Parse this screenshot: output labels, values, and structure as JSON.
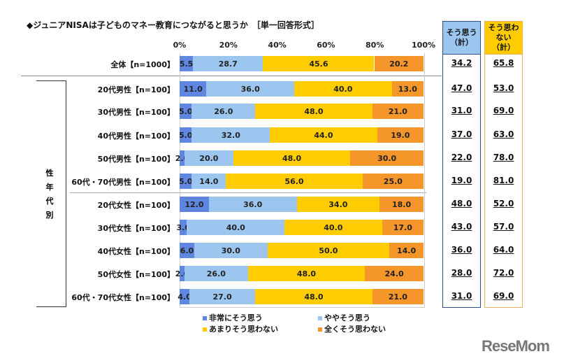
{
  "chart_data": {
    "type": "bar",
    "stacked": true,
    "orientation": "horizontal",
    "title": "◆ジュニアNISAは子どものマネー教育につながると思うか　［単一回答形式］",
    "xlim": [
      0,
      100
    ],
    "xticks": [
      "0%",
      "20%",
      "40%",
      "60%",
      "80%",
      "100%"
    ],
    "group_label": "性年代別",
    "legend_position": "bottom",
    "categories": [
      "全体【n=1000】",
      "20代男性【n=100】",
      "30代男性【n=100】",
      "40代男性【n=100】",
      "50代男性【n=100】",
      "60代・70代男性【n=100】",
      "20代女性【n=100】",
      "30代女性【n=100】",
      "40代女性【n=100】",
      "50代女性【n=100】",
      "60代・70代女性【n=100】"
    ],
    "series": [
      {
        "name": "非常にそう思う",
        "color": "#5f86e0",
        "values": [
          5.5,
          11.0,
          5.0,
          5.0,
          2.0,
          5.0,
          12.0,
          3.0,
          6.0,
          2.0,
          4.0
        ]
      },
      {
        "name": "ややそう思う",
        "color": "#9cc6f0",
        "values": [
          28.7,
          36.0,
          26.0,
          32.0,
          20.0,
          14.0,
          36.0,
          40.0,
          30.0,
          26.0,
          27.0
        ]
      },
      {
        "name": "あまりそう思わない",
        "color": "#ffcc00",
        "values": [
          45.6,
          40.0,
          48.0,
          44.0,
          48.0,
          56.0,
          34.0,
          40.0,
          50.0,
          48.0,
          48.0
        ]
      },
      {
        "name": "全くそう思わない",
        "color": "#f5962a",
        "values": [
          20.2,
          13.0,
          21.0,
          19.0,
          30.0,
          25.0,
          18.0,
          17.0,
          14.0,
          24.0,
          21.0
        ]
      }
    ],
    "summary_columns": [
      {
        "header": "そう思う（計）",
        "color": "#9cc6f0",
        "border": "#2f4f7f",
        "values": [
          "34.2",
          "47.0",
          "31.0",
          "37.0",
          "22.0",
          "19.0",
          "48.0",
          "43.0",
          "36.0",
          "28.0",
          "31.0"
        ]
      },
      {
        "header": "そう思わない（計）",
        "color": "#ffcc00",
        "border": "#e8b060",
        "values": [
          "65.8",
          "53.0",
          "69.0",
          "63.0",
          "78.0",
          "81.0",
          "52.0",
          "57.0",
          "64.0",
          "72.0",
          "69.0"
        ]
      }
    ]
  },
  "watermark": "ReseMom"
}
